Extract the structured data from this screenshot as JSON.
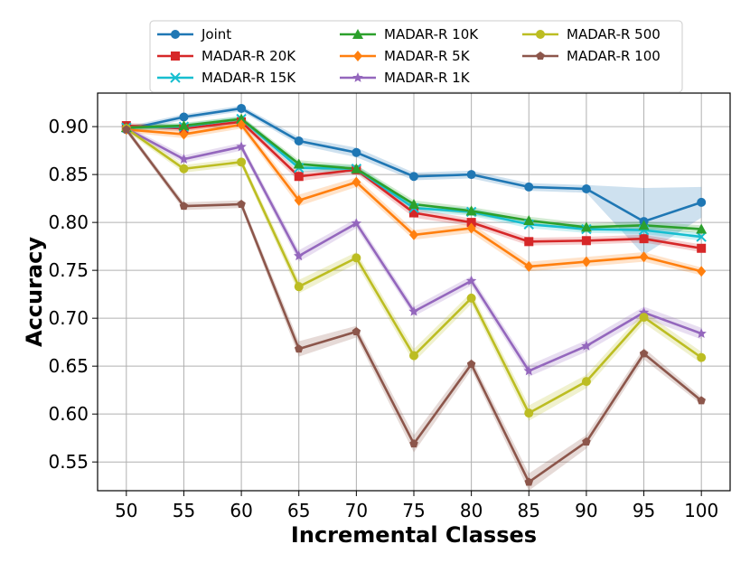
{
  "chart_data": {
    "type": "line",
    "xlabel": "Incremental Classes",
    "ylabel": "Accuracy",
    "x": [
      50,
      55,
      60,
      65,
      70,
      75,
      80,
      85,
      90,
      95,
      100
    ],
    "xlim": [
      47.5,
      102.5
    ],
    "ylim": [
      0.52,
      0.935
    ],
    "yticks": [
      0.55,
      0.6,
      0.65,
      0.7,
      0.75,
      0.8,
      0.85,
      0.9
    ],
    "ytick_labels": [
      "0.55",
      "0.60",
      "0.65",
      "0.70",
      "0.75",
      "0.80",
      "0.85",
      "0.90"
    ],
    "xtick_labels": [
      "50",
      "55",
      "60",
      "65",
      "70",
      "75",
      "80",
      "85",
      "90",
      "95",
      "100"
    ],
    "grid": true,
    "legend_position": "top-center, outside plot",
    "series": [
      {
        "name": "Joint",
        "color": "#1f77b4",
        "marker": "circle",
        "values": [
          0.897,
          0.91,
          0.919,
          0.885,
          0.873,
          0.848,
          0.85,
          0.837,
          0.835,
          0.801,
          0.821
        ],
        "band": [
          0.003,
          0.003,
          0.003,
          0.004,
          0.005,
          0.004,
          0.004,
          0.004,
          0.004,
          0.035,
          0.016
        ]
      },
      {
        "name": "MADAR-R 20K",
        "color": "#d62728",
        "marker": "square",
        "values": [
          0.901,
          0.898,
          0.905,
          0.848,
          0.855,
          0.81,
          0.8,
          0.78,
          0.781,
          0.783,
          0.773
        ],
        "band": [
          0.003,
          0.003,
          0.003,
          0.005,
          0.004,
          0.005,
          0.004,
          0.004,
          0.004,
          0.004,
          0.004
        ]
      },
      {
        "name": "MADAR-R 15K",
        "color": "#17becf",
        "marker": "x",
        "values": [
          0.899,
          0.9,
          0.908,
          0.857,
          0.856,
          0.815,
          0.811,
          0.798,
          0.793,
          0.792,
          0.785
        ],
        "band": [
          0.003,
          0.003,
          0.003,
          0.004,
          0.004,
          0.004,
          0.004,
          0.004,
          0.004,
          0.004,
          0.004
        ]
      },
      {
        "name": "MADAR-R 10K",
        "color": "#2ca02c",
        "marker": "triangle",
        "values": [
          0.899,
          0.901,
          0.908,
          0.861,
          0.856,
          0.819,
          0.812,
          0.802,
          0.795,
          0.797,
          0.793
        ],
        "band": [
          0.003,
          0.003,
          0.003,
          0.004,
          0.004,
          0.004,
          0.004,
          0.004,
          0.004,
          0.004,
          0.004
        ]
      },
      {
        "name": "MADAR-R 5K",
        "color": "#ff7f0e",
        "marker": "diamond",
        "values": [
          0.897,
          0.892,
          0.902,
          0.823,
          0.842,
          0.787,
          0.794,
          0.754,
          0.759,
          0.764,
          0.749
        ],
        "band": [
          0.003,
          0.004,
          0.004,
          0.006,
          0.005,
          0.005,
          0.005,
          0.005,
          0.005,
          0.005,
          0.004
        ]
      },
      {
        "name": "MADAR-R 1K",
        "color": "#9467bd",
        "marker": "star",
        "values": [
          0.898,
          0.866,
          0.879,
          0.765,
          0.799,
          0.707,
          0.739,
          0.645,
          0.671,
          0.706,
          0.684
        ],
        "band": [
          0.003,
          0.004,
          0.004,
          0.006,
          0.005,
          0.005,
          0.005,
          0.006,
          0.006,
          0.006,
          0.006
        ]
      },
      {
        "name": "MADAR-R 500",
        "color": "#bcbd22",
        "marker": "circle",
        "values": [
          0.898,
          0.856,
          0.863,
          0.733,
          0.763,
          0.661,
          0.721,
          0.601,
          0.634,
          0.701,
          0.659
        ],
        "band": [
          0.003,
          0.004,
          0.004,
          0.007,
          0.006,
          0.007,
          0.006,
          0.008,
          0.007,
          0.006,
          0.006
        ]
      },
      {
        "name": "MADAR-R 100",
        "color": "#8c564b",
        "marker": "pentagon",
        "values": [
          0.897,
          0.817,
          0.819,
          0.668,
          0.686,
          0.569,
          0.652,
          0.529,
          0.571,
          0.663,
          0.614
        ],
        "band": [
          0.003,
          0.004,
          0.004,
          0.008,
          0.006,
          0.009,
          0.006,
          0.009,
          0.007,
          0.006,
          0.004
        ]
      }
    ]
  }
}
